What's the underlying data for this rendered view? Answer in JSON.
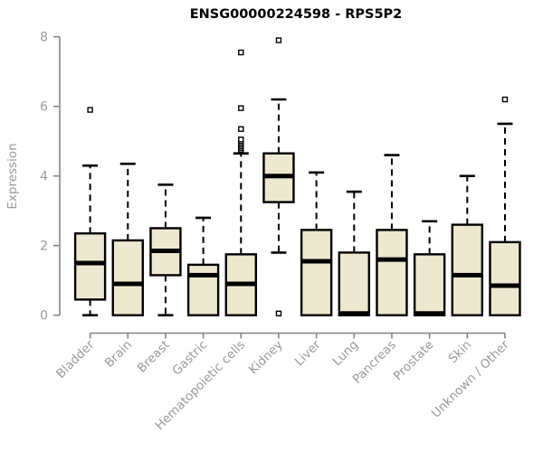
{
  "chart_data": {
    "type": "boxplot",
    "title": "ENSG00000224598 - RPS5P2",
    "ylabel": "Expression",
    "xlabel": "",
    "ylim": [
      0,
      8
    ],
    "yticks": [
      0,
      2,
      4,
      6,
      8
    ],
    "grid": false,
    "legend": "none",
    "categories": [
      "Bladder",
      "Brain",
      "Breast",
      "Gastric",
      "Hematopoietic cells",
      "Kidney",
      "Liver",
      "Lung",
      "Pancreas",
      "Prostate",
      "Skin",
      "Unknown / Other"
    ],
    "boxes": [
      {
        "category": "Bladder",
        "low": 0,
        "q1": 0.45,
        "median": 1.5,
        "q3": 2.35,
        "high": 4.3,
        "outliers": [
          5.9
        ]
      },
      {
        "category": "Brain",
        "low": 0,
        "q1": 0,
        "median": 0.9,
        "q3": 2.15,
        "high": 4.35,
        "outliers": []
      },
      {
        "category": "Breast",
        "low": 0,
        "q1": 1.15,
        "median": 1.85,
        "q3": 2.5,
        "high": 3.75,
        "outliers": []
      },
      {
        "category": "Gastric",
        "low": 0,
        "q1": 0,
        "median": 1.15,
        "q3": 1.45,
        "high": 2.8,
        "outliers": []
      },
      {
        "category": "Hematopoietic cells",
        "low": 0,
        "q1": 0,
        "median": 0.9,
        "q3": 1.75,
        "high": 4.65,
        "outliers": [
          4.75,
          4.8,
          4.85,
          4.9,
          4.95,
          5.0,
          5.05,
          5.35,
          5.95,
          7.55
        ]
      },
      {
        "category": "Kidney",
        "low": 1.8,
        "q1": 3.25,
        "median": 4.0,
        "q3": 4.65,
        "high": 6.2,
        "outliers": [
          7.9,
          0.05
        ]
      },
      {
        "category": "Liver",
        "low": 0,
        "q1": 0,
        "median": 1.55,
        "q3": 2.45,
        "high": 4.1,
        "outliers": []
      },
      {
        "category": "Lung",
        "low": 0,
        "q1": 0,
        "median": 0.05,
        "q3": 1.8,
        "high": 3.55,
        "outliers": []
      },
      {
        "category": "Pancreas",
        "low": 0,
        "q1": 0,
        "median": 1.6,
        "q3": 2.45,
        "high": 4.6,
        "outliers": []
      },
      {
        "category": "Prostate",
        "low": 0,
        "q1": 0,
        "median": 0.05,
        "q3": 1.75,
        "high": 2.7,
        "outliers": []
      },
      {
        "category": "Skin",
        "low": 0,
        "q1": 0,
        "median": 1.15,
        "q3": 2.6,
        "high": 4.0,
        "outliers": []
      },
      {
        "category": "Unknown / Other",
        "low": 0,
        "q1": 0,
        "median": 0.85,
        "q3": 2.1,
        "high": 5.5,
        "outliers": [
          6.2
        ]
      }
    ]
  },
  "style": {
    "background": "#ffffff",
    "box_fill": "#EDE8D0",
    "box_stroke": "#000000",
    "axis_color": "#858585",
    "tick_label_color": "#9a9a9a",
    "title_color": "#000000",
    "outlier_fill": "#ffffff"
  }
}
